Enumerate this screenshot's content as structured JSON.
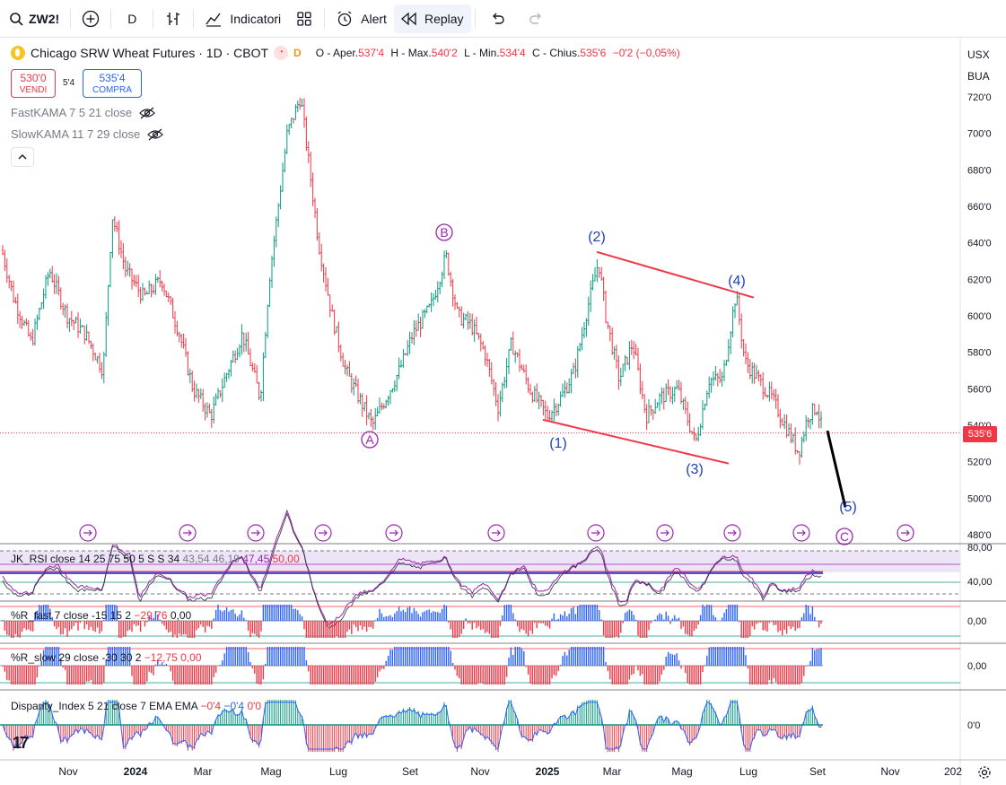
{
  "toolbar": {
    "symbol": "ZW2!",
    "interval": "D",
    "indicators_label": "Indicatori",
    "alert_label": "Alert",
    "replay_label": "Replay"
  },
  "legend": {
    "title": "Chicago SRW Wheat Futures · 1D · CBOT",
    "badge": "D",
    "o_label": "O - Aper.",
    "o": "537'4",
    "h_label": "H - Max.",
    "h": "540'2",
    "l_label": "L - Min.",
    "l": "534'4",
    "c_label": "C - Chius.",
    "c": "535'6",
    "change": "−0'2 (−0,05%)"
  },
  "trade": {
    "sell_price": "530'0",
    "sell_label": "VENDI",
    "spread": "5'4",
    "buy_price": "535'4",
    "buy_label": "COMPRA"
  },
  "indicators": {
    "fast_kama": "FastKAMA 7 5 21 close",
    "slow_kama": "SlowKAMA 11 7 29 close"
  },
  "price_axis": {
    "labels": [
      "720'0",
      "700'0",
      "680'0",
      "660'0",
      "640'0",
      "620'0",
      "600'0",
      "580'0",
      "560'0",
      "540'0",
      "520'0",
      "500'0",
      "480'0"
    ],
    "current": "535'6",
    "currency": "USX",
    "unit": "BUA"
  },
  "x_axis": {
    "labels": [
      "Nov",
      "2024",
      "Mar",
      "Mag",
      "Lug",
      "Set",
      "Nov",
      "2025",
      "Mar",
      "Mag",
      "Lug",
      "Set",
      "Nov",
      "202"
    ]
  },
  "waves": {
    "A": "A",
    "B": "B",
    "C": "C",
    "w1": "(1)",
    "w2": "(2)",
    "w3": "(3)",
    "w4": "(4)",
    "w5": "(5)"
  },
  "panes": {
    "rsi": {
      "label": "JK_RSI close 14 25 75 50 5 S S 34",
      "v1": "43,54",
      "v2": "46,19",
      "v3": "47,45",
      "v4": "50,00",
      "ax_top": "80,00",
      "ax_mid": "40,00"
    },
    "rfast": {
      "label": "%R_fast 7 close -15 15 2",
      "v1": "−29,76",
      "v2": "0,00",
      "ax": "0,00"
    },
    "rslow": {
      "label": "%R_slow 29 close -30 30 2",
      "v1": "−12,75",
      "v2": "0,00",
      "ax": "0,00"
    },
    "disp": {
      "label": "Disparity_Index 5 21 close 7 EMA EMA",
      "v1": "−0'4",
      "v2": "−0'4",
      "v3": "0'0",
      "ax": "0'0"
    }
  },
  "colors": {
    "up": "#089981",
    "down": "#f23645",
    "blue": "#2962ff",
    "wave_purple": "#9c27b0",
    "wave_blue": "#1e3fbf"
  },
  "chart_data": {
    "type": "candlestick",
    "title": "Chicago SRW Wheat Futures · 1D · CBOT",
    "ylim": [
      475,
      735
    ],
    "x_labels": [
      "Nov",
      "2024",
      "Mar",
      "Mag",
      "Lug",
      "Set",
      "Nov",
      "2025",
      "Mar",
      "Mag",
      "Lug",
      "Set",
      "Nov",
      "202"
    ],
    "path": [
      [
        0,
        640
      ],
      [
        15,
        610
      ],
      [
        35,
        585
      ],
      [
        55,
        625
      ],
      [
        75,
        600
      ],
      [
        95,
        590
      ],
      [
        115,
        570
      ],
      [
        125,
        655
      ],
      [
        140,
        625
      ],
      [
        160,
        610
      ],
      [
        180,
        620
      ],
      [
        200,
        590
      ],
      [
        215,
        560
      ],
      [
        235,
        545
      ],
      [
        250,
        565
      ],
      [
        270,
        590
      ],
      [
        290,
        555
      ],
      [
        300,
        620
      ],
      [
        320,
        700
      ],
      [
        335,
        720
      ],
      [
        345,
        680
      ],
      [
        355,
        640
      ],
      [
        370,
        600
      ],
      [
        385,
        570
      ],
      [
        405,
        550
      ],
      [
        415,
        540
      ],
      [
        430,
        555
      ],
      [
        445,
        570
      ],
      [
        460,
        590
      ],
      [
        480,
        605
      ],
      [
        497,
        633
      ],
      [
        510,
        600
      ],
      [
        525,
        595
      ],
      [
        540,
        580
      ],
      [
        555,
        550
      ],
      [
        570,
        585
      ],
      [
        590,
        560
      ],
      [
        610,
        545
      ],
      [
        625,
        555
      ],
      [
        640,
        570
      ],
      [
        655,
        605
      ],
      [
        667,
        630
      ],
      [
        675,
        600
      ],
      [
        690,
        565
      ],
      [
        705,
        585
      ],
      [
        720,
        545
      ],
      [
        735,
        555
      ],
      [
        755,
        560
      ],
      [
        775,
        530
      ],
      [
        790,
        565
      ],
      [
        805,
        565
      ],
      [
        820,
        612
      ],
      [
        830,
        575
      ],
      [
        845,
        565
      ],
      [
        860,
        555
      ],
      [
        875,
        540
      ],
      [
        890,
        525
      ],
      [
        900,
        545
      ],
      [
        910,
        550
      ],
      [
        917,
        536
      ]
    ],
    "channel_upper": [
      [
        665,
        635
      ],
      [
        840,
        610
      ]
    ],
    "channel_lower": [
      [
        605,
        543
      ],
      [
        812,
        519
      ]
    ],
    "projection": [
      [
        922,
        537
      ],
      [
        942,
        495
      ]
    ]
  }
}
